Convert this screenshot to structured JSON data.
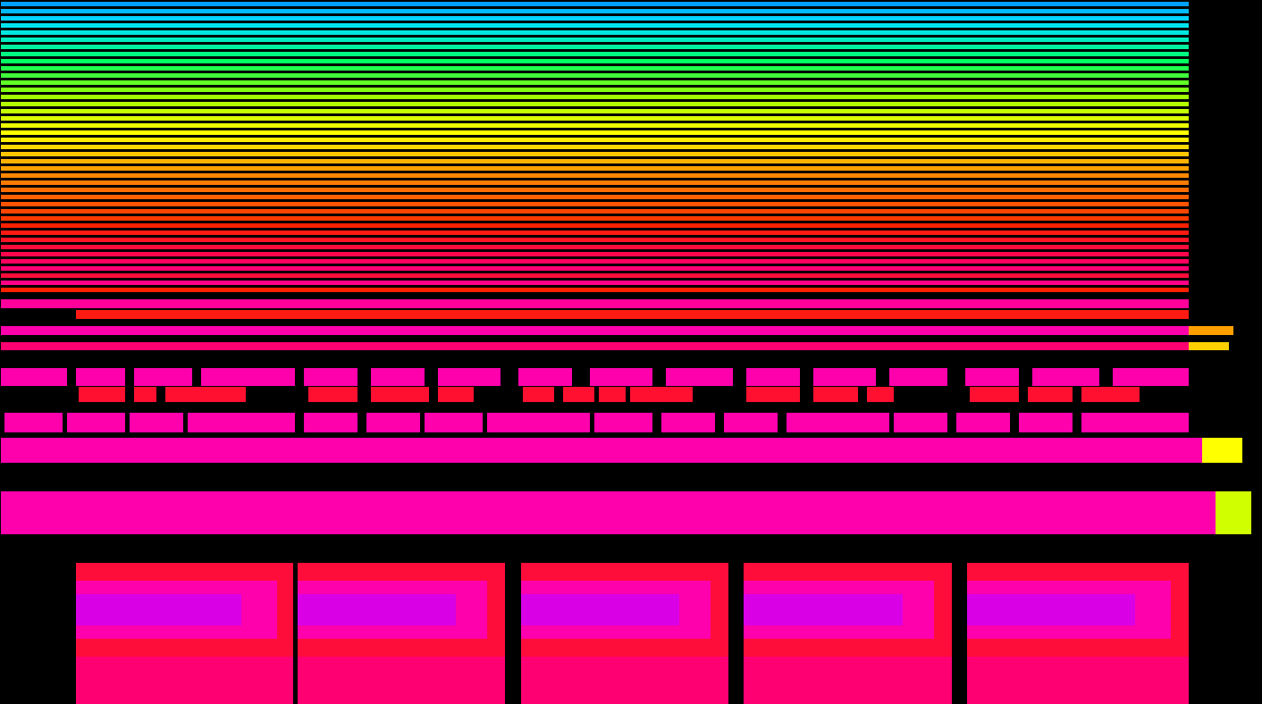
{
  "chart_data": {
    "type": "heatmap",
    "tick_labels": false,
    "xlim": [
      0,
      1412
    ],
    "ylim": [
      0,
      788
    ],
    "colorbar": {
      "range": [
        0,
        100
      ],
      "colors": [
        "#0000c0",
        "#0060ff",
        "#00e0ff",
        "#00ff60",
        "#a0ff00",
        "#ffff00",
        "#ffa000",
        "#ff2000",
        "#ff0060",
        "#ff00c0",
        "#c000ff"
      ]
    },
    "cells": [
      [
        0,
        1330,
        781,
        786,
        15
      ],
      [
        0,
        1330,
        773,
        778,
        17
      ],
      [
        0,
        1330,
        765,
        770,
        19
      ],
      [
        0,
        1330,
        757,
        762,
        21
      ],
      [
        0,
        1330,
        749,
        754,
        22
      ],
      [
        0,
        1330,
        741,
        746,
        24
      ],
      [
        0,
        1330,
        733,
        738,
        26
      ],
      [
        0,
        1330,
        725,
        730,
        28
      ],
      [
        0,
        1330,
        717,
        722,
        30
      ],
      [
        0,
        1330,
        709,
        714,
        32
      ],
      [
        0,
        1330,
        701,
        706,
        34
      ],
      [
        0,
        1330,
        693,
        698,
        36
      ],
      [
        0,
        1330,
        685,
        690,
        38
      ],
      [
        0,
        1330,
        677,
        682,
        40
      ],
      [
        0,
        1330,
        669,
        674,
        42
      ],
      [
        0,
        1330,
        661,
        666,
        44
      ],
      [
        0,
        1330,
        653,
        658,
        46
      ],
      [
        0,
        1330,
        645,
        650,
        48
      ],
      [
        0,
        1330,
        637,
        642,
        50
      ],
      [
        0,
        1330,
        629,
        634,
        52
      ],
      [
        0,
        1330,
        621,
        626,
        54
      ],
      [
        0,
        1330,
        613,
        618,
        56
      ],
      [
        0,
        1330,
        605,
        610,
        58
      ],
      [
        0,
        1330,
        597,
        602,
        60
      ],
      [
        0,
        1330,
        589,
        594,
        62
      ],
      [
        0,
        1330,
        581,
        586,
        63
      ],
      [
        0,
        1330,
        573,
        578,
        64
      ],
      [
        0,
        1330,
        565,
        570,
        65
      ],
      [
        0,
        1330,
        557,
        562,
        66
      ],
      [
        0,
        1330,
        549,
        554,
        67
      ],
      [
        0,
        1330,
        541,
        546,
        68
      ],
      [
        0,
        1330,
        533,
        538,
        70
      ],
      [
        0,
        1330,
        525,
        530,
        72
      ],
      [
        0,
        1330,
        517,
        522,
        74
      ],
      [
        0,
        1330,
        509,
        514,
        76
      ],
      [
        0,
        1330,
        501,
        506,
        78
      ],
      [
        0,
        1330,
        493,
        498,
        80
      ],
      [
        0,
        1330,
        485,
        490,
        82
      ],
      [
        0,
        1330,
        477,
        482,
        76
      ],
      [
        0,
        1330,
        469,
        474,
        84
      ],
      [
        0,
        1330,
        461,
        466,
        70
      ],
      [
        0,
        1330,
        443,
        453,
        86
      ],
      [
        85,
        1330,
        431,
        441,
        72
      ],
      [
        0,
        1330,
        413,
        423,
        88
      ],
      [
        0,
        1330,
        396,
        405,
        82
      ],
      [
        0,
        75,
        356,
        376,
        88
      ],
      [
        85,
        140,
        356,
        376,
        88
      ],
      [
        150,
        215,
        356,
        376,
        88
      ],
      [
        225,
        330,
        356,
        376,
        88
      ],
      [
        340,
        400,
        356,
        376,
        88
      ],
      [
        415,
        475,
        356,
        376,
        88
      ],
      [
        490,
        560,
        356,
        376,
        88
      ],
      [
        580,
        640,
        356,
        376,
        88
      ],
      [
        660,
        730,
        356,
        376,
        88
      ],
      [
        745,
        820,
        356,
        376,
        88
      ],
      [
        835,
        895,
        356,
        376,
        88
      ],
      [
        910,
        980,
        356,
        376,
        88
      ],
      [
        995,
        1060,
        356,
        376,
        88
      ],
      [
        1080,
        1140,
        356,
        376,
        88
      ],
      [
        1155,
        1230,
        356,
        376,
        88
      ],
      [
        1245,
        1330,
        356,
        376,
        88
      ],
      [
        88,
        140,
        338,
        355,
        75
      ],
      [
        150,
        175,
        338,
        355,
        75
      ],
      [
        185,
        275,
        338,
        355,
        75
      ],
      [
        345,
        400,
        338,
        355,
        75
      ],
      [
        415,
        480,
        338,
        355,
        75
      ],
      [
        490,
        530,
        338,
        355,
        75
      ],
      [
        585,
        620,
        338,
        355,
        75
      ],
      [
        630,
        665,
        338,
        355,
        75
      ],
      [
        670,
        700,
        338,
        355,
        75
      ],
      [
        705,
        775,
        338,
        355,
        75
      ],
      [
        835,
        895,
        338,
        355,
        75
      ],
      [
        910,
        960,
        338,
        355,
        75
      ],
      [
        970,
        1000,
        338,
        355,
        75
      ],
      [
        1085,
        1140,
        338,
        355,
        75
      ],
      [
        1150,
        1200,
        338,
        355,
        75
      ],
      [
        1210,
        1275,
        338,
        355,
        75
      ],
      [
        5,
        70,
        304,
        326,
        88
      ],
      [
        75,
        140,
        304,
        326,
        88
      ],
      [
        145,
        205,
        304,
        326,
        88
      ],
      [
        210,
        330,
        304,
        326,
        88
      ],
      [
        340,
        400,
        304,
        326,
        88
      ],
      [
        410,
        470,
        304,
        326,
        88
      ],
      [
        475,
        540,
        304,
        326,
        88
      ],
      [
        545,
        660,
        304,
        326,
        88
      ],
      [
        665,
        730,
        304,
        326,
        88
      ],
      [
        740,
        800,
        304,
        326,
        88
      ],
      [
        810,
        870,
        304,
        326,
        88
      ],
      [
        880,
        995,
        304,
        326,
        88
      ],
      [
        1000,
        1060,
        304,
        326,
        88
      ],
      [
        1070,
        1130,
        304,
        326,
        88
      ],
      [
        1140,
        1200,
        304,
        326,
        88
      ],
      [
        1210,
        1330,
        304,
        326,
        88
      ],
      [
        0,
        1345,
        270,
        298,
        88
      ],
      [
        0,
        1360,
        190,
        238,
        88
      ],
      [
        85,
        328,
        0,
        53,
        82
      ],
      [
        333,
        565,
        0,
        53,
        82
      ],
      [
        583,
        815,
        0,
        53,
        82
      ],
      [
        832,
        1065,
        0,
        53,
        82
      ],
      [
        1082,
        1330,
        0,
        53,
        82
      ],
      [
        85,
        328,
        53,
        158,
        76
      ],
      [
        333,
        565,
        53,
        158,
        76
      ],
      [
        583,
        815,
        53,
        158,
        76
      ],
      [
        832,
        1065,
        53,
        158,
        76
      ],
      [
        1082,
        1330,
        53,
        158,
        76
      ],
      [
        85,
        310,
        73,
        138,
        88
      ],
      [
        333,
        545,
        73,
        138,
        88
      ],
      [
        583,
        795,
        73,
        138,
        88
      ],
      [
        832,
        1045,
        73,
        138,
        88
      ],
      [
        1082,
        1310,
        73,
        138,
        88
      ],
      [
        85,
        270,
        88,
        123,
        96
      ],
      [
        333,
        510,
        88,
        123,
        96
      ],
      [
        583,
        760,
        88,
        123,
        96
      ],
      [
        832,
        1010,
        88,
        123,
        96
      ],
      [
        1082,
        1270,
        88,
        123,
        96
      ],
      [
        1345,
        1390,
        270,
        298,
        50
      ],
      [
        1360,
        1400,
        190,
        238,
        45
      ],
      [
        1330,
        1380,
        413,
        423,
        60
      ],
      [
        1330,
        1375,
        396,
        405,
        55
      ]
    ]
  }
}
